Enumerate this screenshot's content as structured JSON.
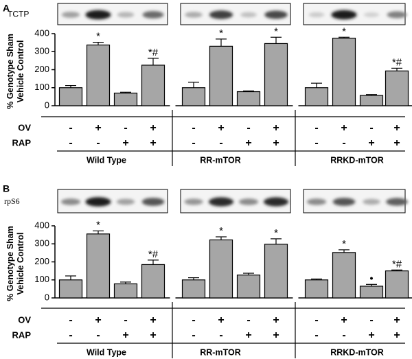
{
  "chart_data": [
    {
      "type": "bar",
      "panel": "A",
      "blot_label": "TCTP",
      "ylabel_line1": "% Genotype Sham",
      "ylabel_line2": "Vehicle Control",
      "ylim": [
        0,
        400
      ],
      "yticks": [
        "0",
        "100",
        "200",
        "300",
        "400"
      ],
      "groups": [
        {
          "name": "Wild Type",
          "values": [
            100,
            337,
            70,
            225
          ],
          "errors": [
            12,
            15,
            5,
            38
          ],
          "marks": [
            "",
            "*",
            "",
            "*#"
          ]
        },
        {
          "name": "RR-mTOR",
          "values": [
            100,
            330,
            78,
            345
          ],
          "errors": [
            30,
            40,
            4,
            35
          ],
          "marks": [
            "",
            "*",
            "",
            "*"
          ]
        },
        {
          "name": "RRKD-mTOR",
          "values": [
            100,
            375,
            57,
            193
          ],
          "errors": [
            25,
            5,
            5,
            15
          ],
          "marks": [
            "",
            "*",
            "",
            "*#"
          ]
        }
      ],
      "conditions": [
        {
          "label": "OV",
          "signs": [
            "-",
            "+",
            "-",
            "+"
          ]
        },
        {
          "label": "RAP",
          "signs": [
            "-",
            "-",
            "+",
            "+"
          ]
        }
      ]
    },
    {
      "type": "bar",
      "panel": "B",
      "blot_label": "rpS6",
      "ylabel_line1": "% Genotype Sham",
      "ylabel_line2": "Vehicle Control",
      "ylim": [
        0,
        400
      ],
      "yticks": [
        "0",
        "100",
        "200",
        "300",
        "400"
      ],
      "groups": [
        {
          "name": "Wild Type",
          "values": [
            100,
            355,
            78,
            185
          ],
          "errors": [
            22,
            17,
            10,
            25
          ],
          "marks": [
            "",
            "*",
            "",
            "*#"
          ]
        },
        {
          "name": "RR-mTOR",
          "values": [
            100,
            322,
            127,
            298
          ],
          "errors": [
            12,
            17,
            10,
            30
          ],
          "marks": [
            "",
            "*",
            "",
            "*"
          ]
        },
        {
          "name": "RRKD-mTOR",
          "values": [
            100,
            252,
            65,
            150
          ],
          "errors": [
            5,
            15,
            10,
            5
          ],
          "marks": [
            "",
            "*",
            "•",
            "*#"
          ]
        }
      ],
      "conditions": [
        {
          "label": "OV",
          "signs": [
            "-",
            "+",
            "-",
            "+"
          ]
        },
        {
          "label": "RAP",
          "signs": [
            "-",
            "-",
            "+",
            "+"
          ]
        }
      ]
    }
  ]
}
